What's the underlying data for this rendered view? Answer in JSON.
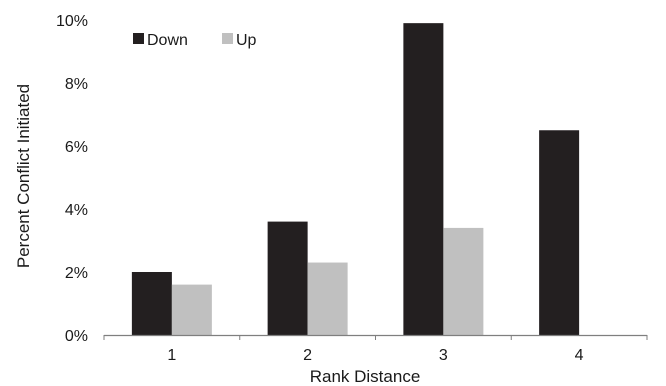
{
  "chart_data": {
    "type": "bar",
    "categories": [
      "1",
      "2",
      "3",
      "4"
    ],
    "series": [
      {
        "name": "Down",
        "values": [
          2.0,
          3.6,
          9.9,
          6.5
        ],
        "color": "#231f20"
      },
      {
        "name": "Up",
        "values": [
          1.6,
          2.3,
          3.4,
          0
        ],
        "color": "#c0c0c0"
      }
    ],
    "y_ticks": [
      "0%",
      "2%",
      "4%",
      "6%",
      "8%",
      "10%"
    ],
    "ylim": [
      0,
      10
    ],
    "xlabel": "Rank Distance",
    "ylabel": "Percent Conflict Initiated",
    "legend_position": "top-left",
    "grid": false
  }
}
